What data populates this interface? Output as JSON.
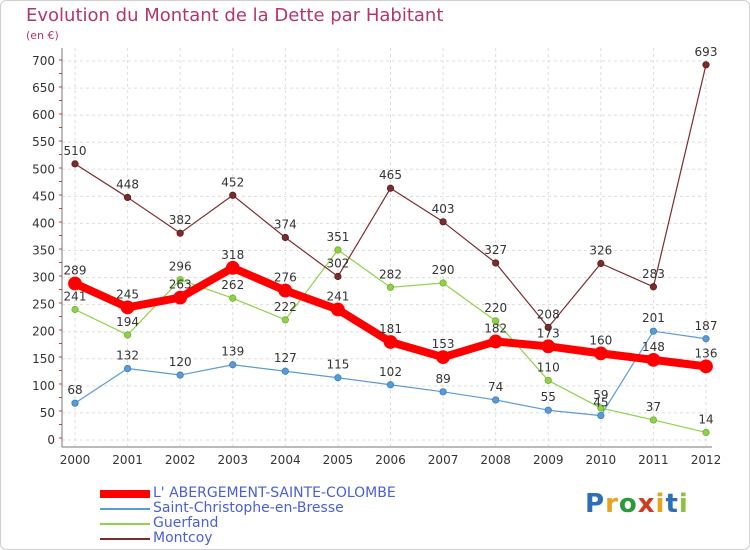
{
  "title": "Evolution du Montant de la Dette par Habitant",
  "subtitle": "(en €)",
  "logo": {
    "letters": [
      "P",
      "r",
      "o",
      "x",
      "i",
      "t",
      "i"
    ],
    "colors": [
      "#2c6fb6",
      "#e8a31e",
      "#2c9a3a",
      "#d03b1e",
      "#e8a31e",
      "#2c6fb6",
      "#8bc13e"
    ]
  },
  "chart_data": {
    "type": "line",
    "x": [
      "2000",
      "2001",
      "2002",
      "2003",
      "2004",
      "2005",
      "2006",
      "2007",
      "2008",
      "2009",
      "2010",
      "2011",
      "2012"
    ],
    "ylim": [
      0,
      700
    ],
    "yticks": [
      0,
      50,
      100,
      150,
      200,
      250,
      300,
      350,
      400,
      450,
      500,
      550,
      600,
      650,
      700
    ],
    "grid": true,
    "legend_position": "bottom-left",
    "series": [
      {
        "name": "L' ABERGEMENT-SAINTE-COLOMBE",
        "color": "#ff0000",
        "width": 8,
        "values": [
          289,
          245,
          263,
          318,
          276,
          241,
          181,
          153,
          182,
          173,
          160,
          148,
          136
        ]
      },
      {
        "name": "Saint-Christophe-en-Bresse",
        "color": "#5b9bd5",
        "width": 1.2,
        "values": [
          68,
          132,
          120,
          139,
          127,
          115,
          102,
          89,
          74,
          55,
          45,
          201,
          187
        ]
      },
      {
        "name": "Guerfand",
        "color": "#8fd148",
        "width": 1.2,
        "values": [
          241,
          194,
          296,
          262,
          222,
          351,
          282,
          290,
          220,
          110,
          59,
          37,
          14
        ]
      },
      {
        "name": "Montcoy",
        "color": "#7b2c2c",
        "width": 1.2,
        "values": [
          510,
          448,
          382,
          452,
          374,
          302,
          465,
          403,
          327,
          208,
          326,
          283,
          693
        ]
      }
    ]
  }
}
